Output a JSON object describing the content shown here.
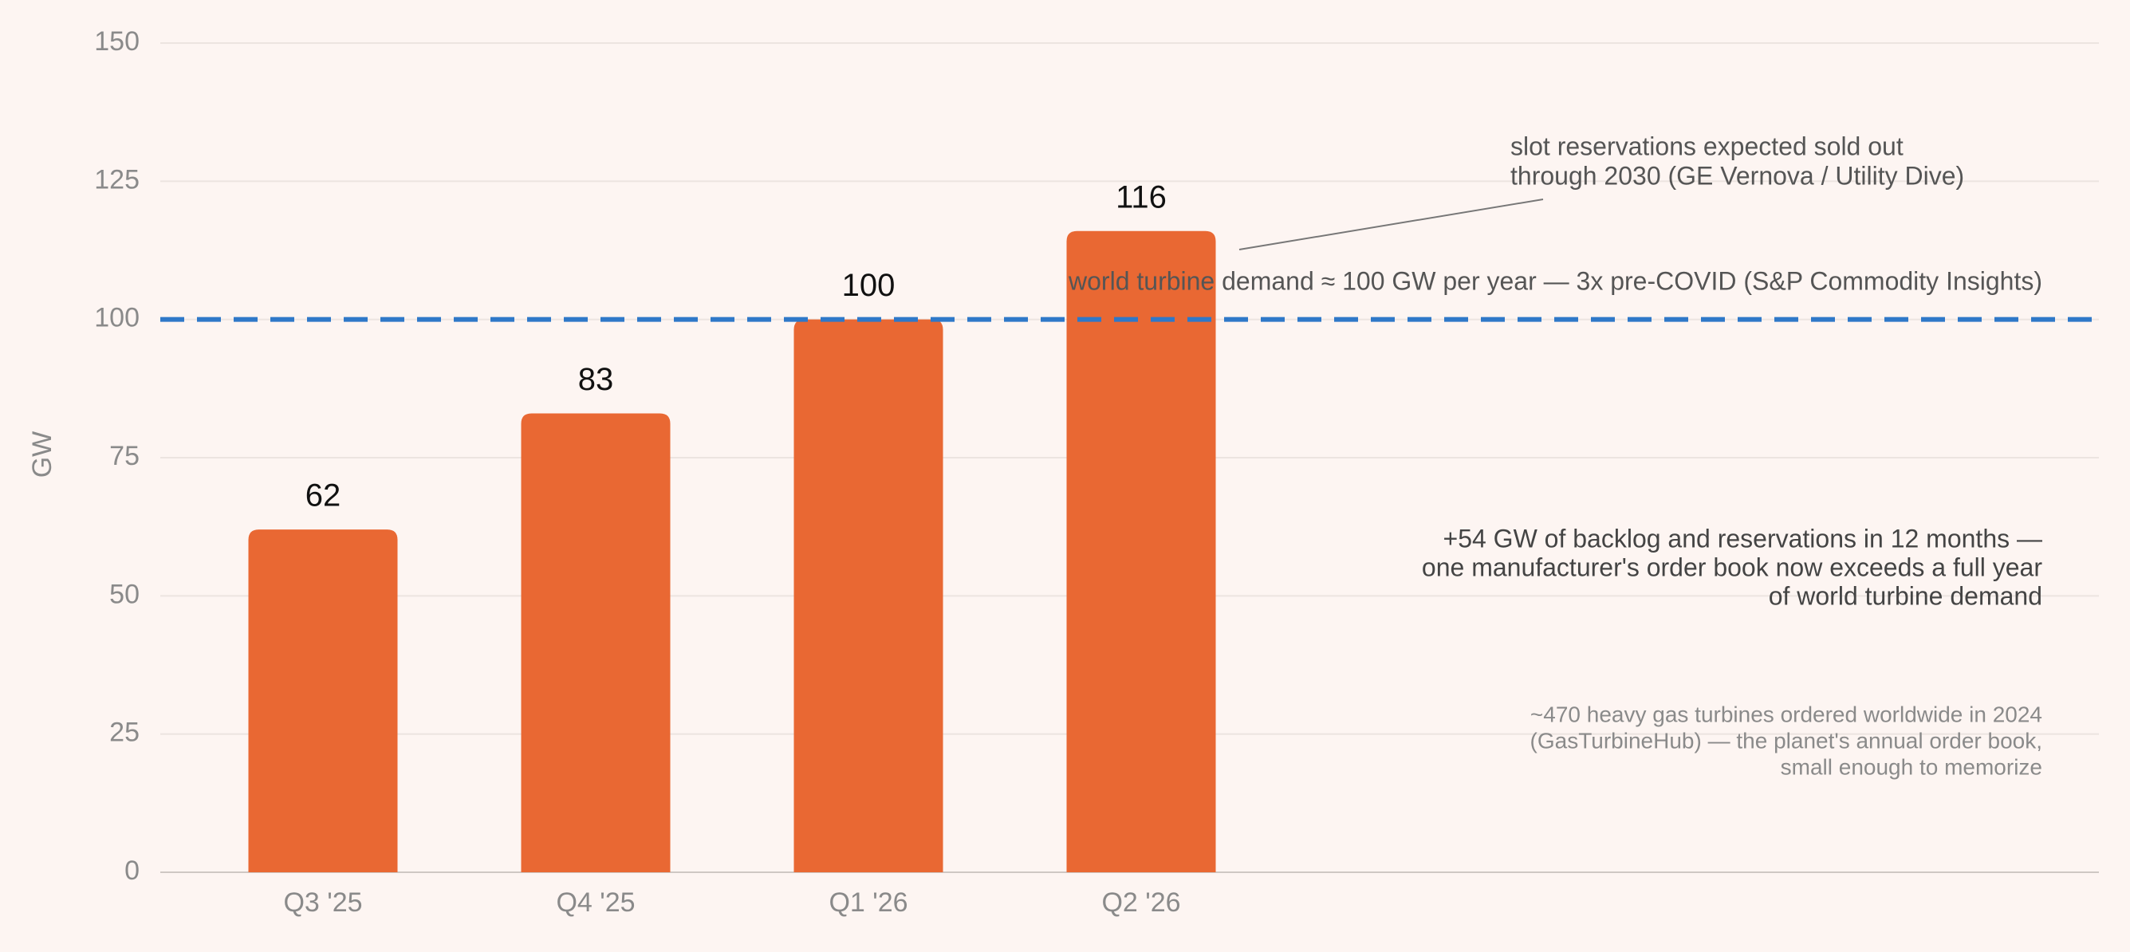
{
  "chart_data": {
    "type": "bar",
    "y_label": "GW",
    "categories": [
      "Q3 '25",
      "Q4 '25",
      "Q1 '26",
      "Q2 '26"
    ],
    "values": [
      62,
      83,
      100,
      116
    ],
    "color": "#e96833",
    "ylim": [
      0,
      150
    ],
    "yticks": [
      0,
      25,
      50,
      75,
      100,
      125,
      150
    ],
    "grid": true,
    "reference_line": {
      "value": 100,
      "label": "world turbine demand ≈ 100 GW per year — 3x pre-COVID (S&P Commodity Insights)",
      "color": "#2f78c8"
    },
    "arrow_annotation": [
      "slot reservations expected sold out",
      "through 2030 (GE Vernova / Utility Dive)"
    ],
    "note": [
      "+54 GW of backlog and reservations in 12 months —",
      "one manufacturer's order book now exceeds a full year",
      "of world turbine demand"
    ],
    "footnote": [
      "~470 heavy gas turbines ordered worldwide in 2024",
      "(GasTurbineHub) — the planet's annual order book,",
      "small enough to memorize"
    ]
  }
}
